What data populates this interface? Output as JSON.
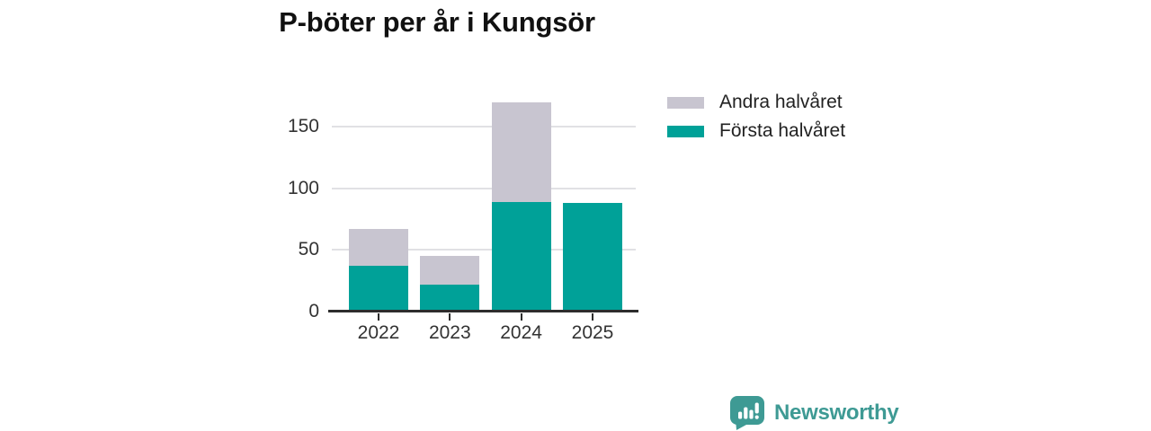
{
  "title": "P-böter per år i Kungsör",
  "chart_data": {
    "type": "bar",
    "stacked": true,
    "title": "P-böter per år i Kungsör",
    "categories": [
      "2022",
      "2023",
      "2024",
      "2025"
    ],
    "series": [
      {
        "name": "Första halvåret",
        "color": "#00a198",
        "values": [
          37,
          22,
          89,
          88
        ]
      },
      {
        "name": "Andra halvåret",
        "color": "#c8c5d0",
        "values": [
          30,
          23,
          81,
          0
        ]
      }
    ],
    "totals": [
      67,
      45,
      170,
      88
    ],
    "xlabel": "",
    "ylabel": "",
    "yticks": [
      0,
      50,
      100,
      150
    ],
    "ylim": [
      0,
      183
    ],
    "grid": true,
    "legend_position": "right-top",
    "legend_order": [
      "Andra halvåret",
      "Första halvåret"
    ]
  },
  "colors": {
    "background": "#ffffff",
    "grid": "#e1e1e4",
    "axis": "#2d2d2d",
    "tick_text": "#333333",
    "title_text": "#111111",
    "series_forsta": "#00a198",
    "series_andra": "#c8c5d0",
    "brand": "#3e9a94"
  },
  "branding": {
    "logo_text": "Newsworthy",
    "logo_color": "#3e9a94",
    "logo_icon": "speech-bubble-bar-chart"
  }
}
